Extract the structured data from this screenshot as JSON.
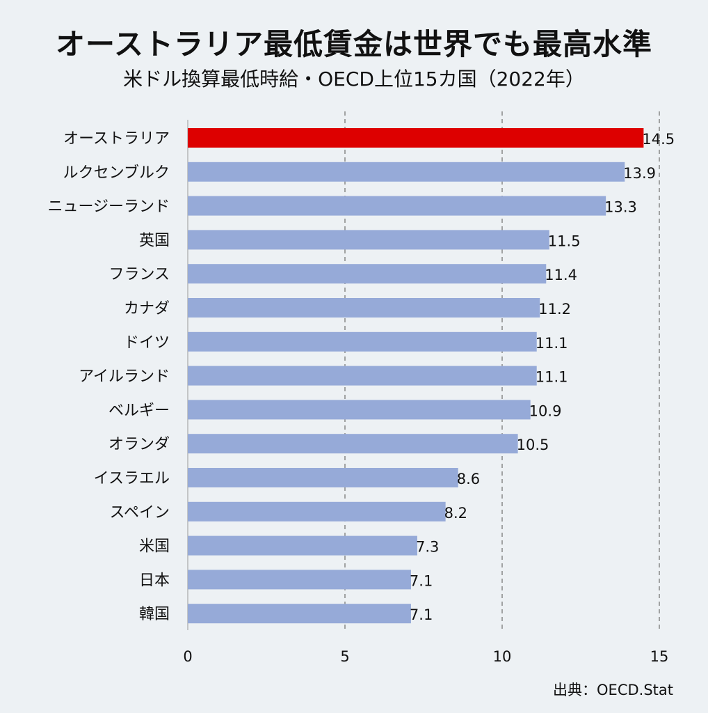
{
  "title": "オーストラリア最低賃金は世界でも最高水準",
  "subtitle": "米ドル換算最低時給・OECD上位15カ国（2022年）",
  "source": "出典：OECD.Stat",
  "colors": {
    "highlight": "#dd0000",
    "bar": "#96aad8",
    "grid": "#777777",
    "axis": "#999999"
  },
  "chart_data": {
    "type": "bar",
    "orientation": "horizontal",
    "title": "オーストラリア最低賃金は世界でも最高水準",
    "subtitle": "米ドル換算最低時給・OECD上位15カ国（2022年）",
    "categories": [
      "オーストラリア",
      "ルクセンブルク",
      "ニュージーランド",
      "英国",
      "フランス",
      "カナダ",
      "ドイツ",
      "アイルランド",
      "ベルギー",
      "オランダ",
      "イスラエル",
      "スペイン",
      "米国",
      "日本",
      "韓国"
    ],
    "values": [
      14.5,
      13.9,
      13.3,
      11.5,
      11.4,
      11.2,
      11.1,
      11.1,
      10.9,
      10.5,
      8.6,
      8.2,
      7.3,
      7.1,
      7.1
    ],
    "highlight_index": 0,
    "xlim": [
      0,
      15
    ],
    "xticks": [
      0,
      5,
      10,
      15
    ],
    "grid": "vertical dashed",
    "legend": "none"
  }
}
